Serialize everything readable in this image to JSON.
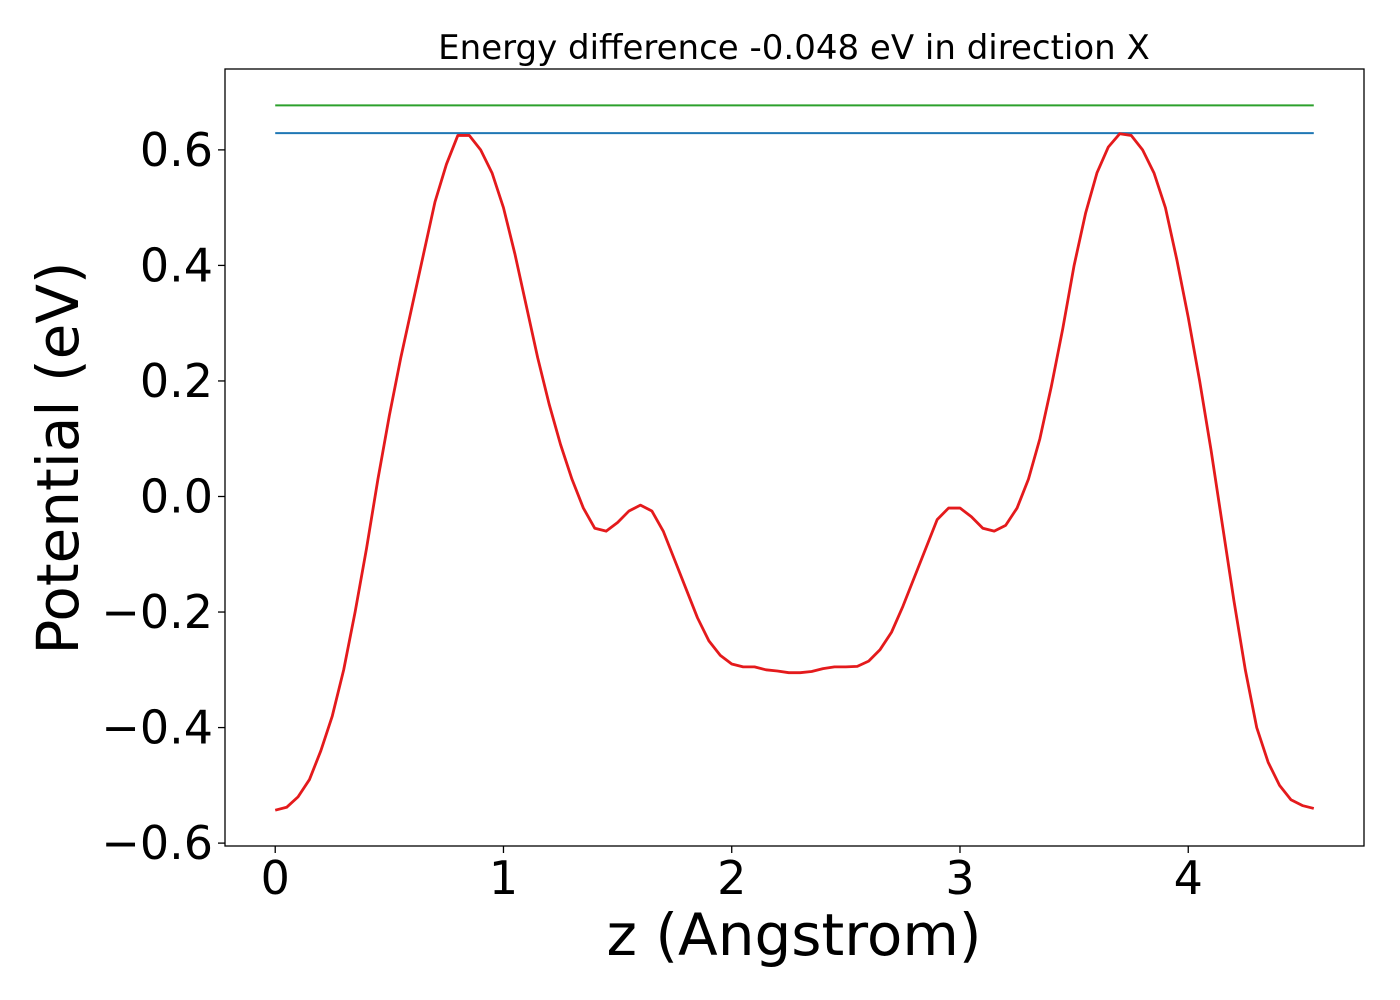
{
  "chart_data": {
    "type": "line",
    "title": "Energy difference -0.048 eV in direction X",
    "xlabel": "z (Angstrom)",
    "ylabel": "Potential (eV)",
    "xlim": [
      -0.22,
      4.77
    ],
    "ylim": [
      -0.605,
      0.74
    ],
    "xticks": [
      0,
      1,
      2,
      3,
      4
    ],
    "yticks": [
      -0.6,
      -0.4,
      -0.2,
      0.0,
      0.2,
      0.4,
      0.6
    ],
    "xtick_labels": [
      "0",
      "1",
      "2",
      "3",
      "4"
    ],
    "ytick_labels": [
      "−0.6",
      "−0.4",
      "−0.2",
      "0.0",
      "0.2",
      "0.4",
      "0.6"
    ],
    "grid": false,
    "hlines": [
      {
        "y": 0.677,
        "x": [
          0,
          4.55
        ],
        "color": "#2ca02c"
      },
      {
        "y": 0.629,
        "x": [
          0,
          4.55
        ],
        "color": "#1f77b4"
      }
    ],
    "series": [
      {
        "color": "#e41a1c",
        "x": [
          0,
          0.05,
          0.1,
          0.15,
          0.2,
          0.25,
          0.3,
          0.35,
          0.4,
          0.45,
          0.5,
          0.55,
          0.6,
          0.65,
          0.7,
          0.75,
          0.8,
          0.85,
          0.9,
          0.95,
          1.0,
          1.05,
          1.1,
          1.15,
          1.2,
          1.25,
          1.3,
          1.35,
          1.4,
          1.45,
          1.5,
          1.55,
          1.6,
          1.65,
          1.7,
          1.75,
          1.8,
          1.85,
          1.9,
          1.95,
          2.0,
          2.05,
          2.1,
          2.15,
          2.2,
          2.25,
          2.3,
          2.35,
          2.4,
          2.45,
          2.5,
          2.55,
          2.6,
          2.65,
          2.7,
          2.75,
          2.8,
          2.85,
          2.9,
          2.95,
          3.0,
          3.05,
          3.1,
          3.15,
          3.2,
          3.25,
          3.3,
          3.35,
          3.4,
          3.45,
          3.5,
          3.55,
          3.6,
          3.65,
          3.7,
          3.75,
          3.8,
          3.85,
          3.9,
          3.95,
          4.0,
          4.05,
          4.1,
          4.15,
          4.2,
          4.25,
          4.3,
          4.35,
          4.4,
          4.45,
          4.5,
          4.55
        ],
        "y": [
          -0.543,
          -0.538,
          -0.52,
          -0.49,
          -0.44,
          -0.38,
          -0.3,
          -0.2,
          -0.09,
          0.03,
          0.14,
          0.24,
          0.33,
          0.42,
          0.51,
          0.575,
          0.625,
          0.625,
          0.6,
          0.56,
          0.5,
          0.42,
          0.33,
          0.24,
          0.16,
          0.09,
          0.03,
          -0.02,
          -0.055,
          -0.06,
          -0.045,
          -0.025,
          -0.015,
          -0.025,
          -0.06,
          -0.11,
          -0.16,
          -0.21,
          -0.25,
          -0.275,
          -0.29,
          -0.295,
          -0.295,
          -0.3,
          -0.302,
          -0.305,
          -0.305,
          -0.303,
          -0.298,
          -0.295,
          -0.295,
          -0.294,
          -0.285,
          -0.265,
          -0.235,
          -0.19,
          -0.14,
          -0.09,
          -0.04,
          -0.02,
          -0.02,
          -0.035,
          -0.055,
          -0.06,
          -0.05,
          -0.02,
          0.03,
          0.1,
          0.19,
          0.29,
          0.4,
          0.49,
          0.56,
          0.605,
          0.628,
          0.625,
          0.6,
          0.56,
          0.5,
          0.41,
          0.31,
          0.2,
          0.08,
          -0.05,
          -0.18,
          -0.3,
          -0.4,
          -0.46,
          -0.5,
          -0.525,
          -0.535,
          -0.54
        ]
      }
    ]
  }
}
